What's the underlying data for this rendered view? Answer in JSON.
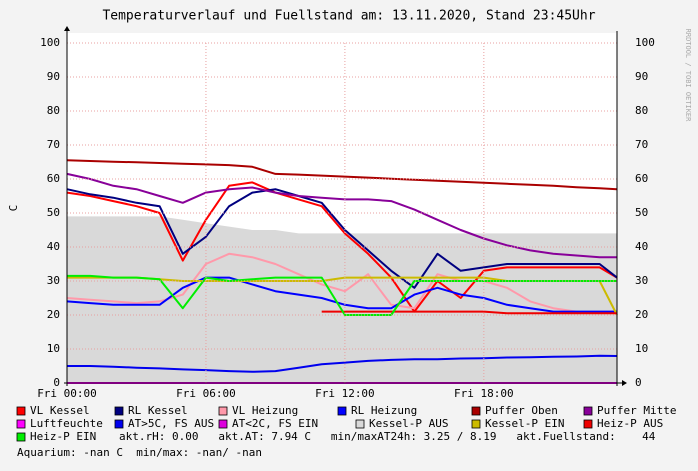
{
  "chart_data": {
    "type": "line",
    "title": "Temperaturverlauf und Fuellstand am: 13.11.2020, Stand 23:45Uhr",
    "y_label": "C",
    "side_label": "RRDTOOL / TOBI OETIKER",
    "x": [
      0,
      1,
      2,
      3,
      4,
      5,
      6,
      7,
      8,
      9,
      10,
      11,
      12,
      13,
      14,
      15,
      16,
      17,
      18,
      19,
      20,
      21,
      22,
      23,
      23.75
    ],
    "xlim": [
      0,
      23.75
    ],
    "xticks": [
      {
        "value": 0,
        "label": "Fri 00:00"
      },
      {
        "value": 6,
        "label": "Fri 06:00"
      },
      {
        "value": 12,
        "label": "Fri 12:00"
      },
      {
        "value": 18,
        "label": "Fri 18:00"
      }
    ],
    "ylim": [
      0,
      100
    ],
    "yticks": [
      0,
      10,
      20,
      30,
      40,
      50,
      60,
      70,
      80,
      90,
      100
    ],
    "y2lim": [
      0,
      100
    ],
    "y2ticks": [
      0,
      10,
      20,
      30,
      40,
      50,
      60,
      70,
      80,
      90,
      100
    ],
    "grid": true,
    "series": [
      {
        "name": "Kessel-P AUS",
        "color": "#d9d9d9",
        "style": "area",
        "values": [
          49,
          49,
          49,
          49,
          49,
          48,
          47,
          46,
          45,
          45,
          44,
          44,
          44,
          44,
          44,
          44,
          44,
          44,
          44,
          44,
          44,
          44,
          44,
          44,
          44
        ]
      },
      {
        "name": "VL Kessel",
        "color": "#ff0000",
        "values": [
          56,
          55,
          53.5,
          52,
          50,
          36,
          48,
          58,
          59,
          56,
          54,
          52,
          44,
          38,
          31,
          21,
          30,
          25,
          33,
          34,
          34,
          34,
          34,
          34,
          31
        ]
      },
      {
        "name": "RL Kessel",
        "color": "#000080",
        "values": [
          57,
          55.5,
          54.5,
          53,
          52,
          38,
          43,
          52,
          56,
          57,
          55,
          53,
          45,
          39,
          33,
          28,
          38,
          33,
          34,
          35,
          35,
          35,
          35,
          35,
          31
        ]
      },
      {
        "name": "VL Heizung",
        "color": "#ff99aa",
        "values": [
          25,
          24.5,
          24,
          23.5,
          24,
          26,
          35,
          38,
          37,
          35,
          32,
          29,
          27,
          32,
          23,
          22,
          32,
          30,
          30,
          28,
          24,
          22,
          21,
          21,
          21
        ]
      },
      {
        "name": "RL Heizung",
        "color": "#0000ff",
        "values": [
          24,
          23.5,
          23,
          23,
          23,
          28,
          31,
          31,
          29,
          27,
          26,
          25,
          23,
          22,
          22,
          26,
          28,
          26,
          25,
          23,
          22,
          21,
          21,
          21,
          21
        ]
      },
      {
        "name": "Puffer Oben",
        "color": "#aa0000",
        "values": [
          65.5,
          65.3,
          65.1,
          64.9,
          64.7,
          64.5,
          64.3,
          64.1,
          63.6,
          61.5,
          61.3,
          61.0,
          60.7,
          60.4,
          60.1,
          59.8,
          59.5,
          59.2,
          58.9,
          58.6,
          58.3,
          58,
          57.6,
          57.3,
          57
        ]
      },
      {
        "name": "Puffer Mitte",
        "color": "#880099",
        "values": [
          61.5,
          60,
          58,
          57,
          55,
          53,
          56,
          57,
          57.5,
          56,
          55,
          54.5,
          54,
          54,
          53.5,
          51,
          48,
          45,
          42.5,
          40.5,
          39,
          38,
          37.5,
          37,
          37
        ]
      },
      {
        "name": "Luftfeuchte",
        "color": "#ff00ff",
        "values": [
          0,
          0,
          0,
          0,
          0,
          0,
          0,
          0,
          0,
          0,
          0,
          0,
          0,
          0,
          0,
          0,
          0,
          0,
          0,
          0,
          0,
          0,
          0,
          0,
          0
        ]
      },
      {
        "name": "AT>5C, FS AUS",
        "color": "#0000ee",
        "values": [
          5,
          5,
          4.8,
          4.5,
          4.3,
          4,
          3.8,
          3.5,
          3.3,
          3.5,
          4.5,
          5.5,
          6,
          6.5,
          6.8,
          7,
          7,
          7.2,
          7.3,
          7.5,
          7.6,
          7.7,
          7.8,
          8,
          7.94
        ]
      },
      {
        "name": "AT<2C, FS EIN",
        "color": "#dd00dd",
        "values": [
          null,
          null,
          null,
          null,
          null,
          null,
          null,
          null,
          null,
          null,
          null,
          null,
          null,
          null,
          null,
          null,
          null,
          null,
          null,
          null,
          null,
          null,
          null,
          null,
          null
        ]
      },
      {
        "name": "Kessel-P EIN",
        "color": "#ccbb00",
        "values": [
          31,
          31,
          31,
          31,
          30.5,
          30,
          30,
          30,
          30,
          30,
          30,
          30,
          31,
          31,
          31,
          31,
          31,
          31,
          31,
          30,
          30,
          30,
          30,
          30,
          20
        ]
      },
      {
        "name": "Heiz-P AUS",
        "color": "#ee0000",
        "values": [
          null,
          null,
          null,
          null,
          null,
          null,
          null,
          null,
          null,
          null,
          null,
          21,
          21,
          21,
          21,
          21,
          21,
          21,
          21,
          20.5,
          20.5,
          20.5,
          20.5,
          20.5,
          20.5
        ]
      },
      {
        "name": "Heiz-P EIN",
        "color": "#00ee00",
        "values": [
          31.5,
          31.5,
          31,
          31,
          30.5,
          22,
          31,
          30,
          30.5,
          31,
          31,
          31,
          20,
          20,
          20,
          30,
          30,
          30,
          30,
          30,
          30,
          30,
          30,
          30,
          30
        ]
      }
    ],
    "legend_order": [
      1,
      2,
      3,
      4,
      5,
      6,
      7,
      8,
      9,
      0,
      10,
      11,
      12
    ],
    "notes": [
      "akt.rH: 0.00   akt.AT: 7.94 C   min/maxAT24h: 3.25 / 8.19   akt.Fuellstand:    44",
      "Aquarium: -nan C  min/max: -nan/ -nan"
    ]
  }
}
